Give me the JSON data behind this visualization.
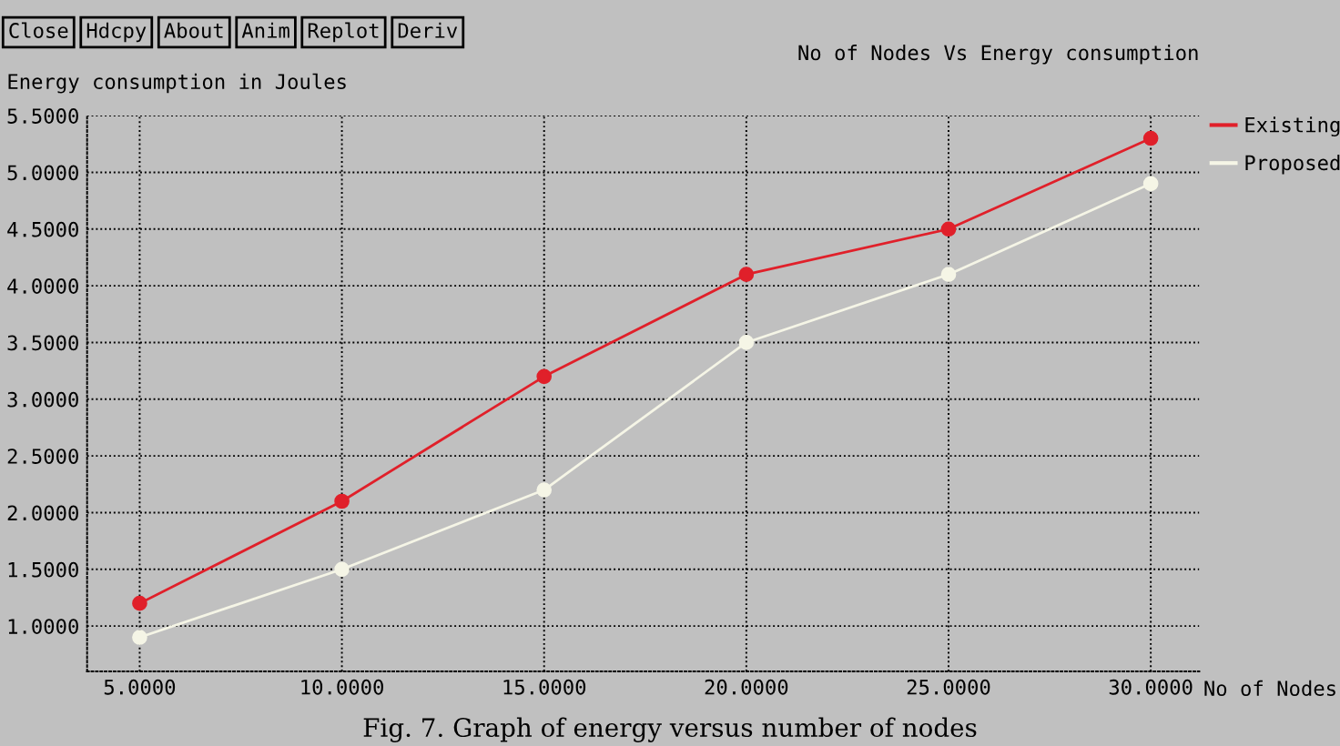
{
  "chart_data": {
    "type": "line",
    "title": "No of Nodes Vs Energy consumption",
    "xlabel": "No of Nodes",
    "ylabel": "Energy consumption in Joules",
    "x": [
      5,
      10,
      15,
      20,
      25,
      30
    ],
    "series": [
      {
        "name": "Existing",
        "color": "#e0202a",
        "values": [
          1.2,
          2.1,
          3.2,
          4.1,
          4.5,
          5.3
        ]
      },
      {
        "name": "Proposed",
        "color": "#f5f5e6",
        "values": [
          0.9,
          1.5,
          2.2,
          3.5,
          4.1,
          4.9
        ]
      }
    ],
    "xlim": [
      3.7,
      31.2
    ],
    "ylim": [
      0.6,
      5.5
    ],
    "xticks": [
      {
        "value": 5,
        "label": "5.0000"
      },
      {
        "value": 10,
        "label": "10.0000"
      },
      {
        "value": 15,
        "label": "15.0000"
      },
      {
        "value": 20,
        "label": "20.0000"
      },
      {
        "value": 25,
        "label": "25.0000"
      },
      {
        "value": 30,
        "label": "30.0000"
      }
    ],
    "yticks": [
      {
        "value": 1,
        "label": "1.0000"
      },
      {
        "value": 1.5,
        "label": "1.5000"
      },
      {
        "value": 2,
        "label": "2.0000"
      },
      {
        "value": 2.5,
        "label": "2.5000"
      },
      {
        "value": 3,
        "label": "3.0000"
      },
      {
        "value": 3.5,
        "label": "3.5000"
      },
      {
        "value": 4,
        "label": "4.0000"
      },
      {
        "value": 4.5,
        "label": "4.5000"
      },
      {
        "value": 5,
        "label": "5.0000"
      },
      {
        "value": 5.5,
        "label": "5.5000"
      }
    ],
    "grid": true,
    "legend": "top right",
    "marker": "circle",
    "line_style": "solid",
    "annotations": [
      "Close",
      "Hdcpy",
      "About",
      "Anim",
      "Replot",
      "Deriv",
      "Fig. 7. Graph of energy versus number of nodes"
    ]
  }
}
